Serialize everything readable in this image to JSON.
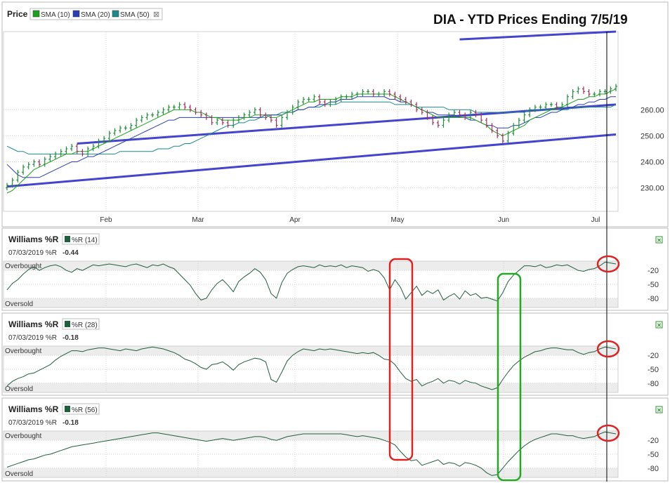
{
  "chart_data": [
    {
      "type": "line",
      "title": "DIA - YTD Prices Ending 7/5/19",
      "price_label": "Price",
      "legend": [
        {
          "name": "SMA (10)",
          "color": "#1aa31a"
        },
        {
          "name": "SMA (20)",
          "color": "#2a3fb4"
        },
        {
          "name": "SMA (50)",
          "color": "#1a8a8a"
        }
      ],
      "legend_close": "⊠",
      "x_month_labels": [
        "Feb",
        "Mar",
        "Apr",
        "May",
        "Jun",
        "Jul"
      ],
      "y_ticks": [
        "260.00",
        "250.00",
        "240.00",
        "230.00"
      ],
      "ylim": [
        221,
        290
      ],
      "price_colors": {
        "up": "#1f8f3a",
        "down": "#a0305a",
        "trend": "#4444cc"
      },
      "price_close": [
        231,
        233,
        236,
        238,
        239,
        240,
        239,
        241,
        242,
        243,
        244,
        245,
        246,
        244,
        243,
        245,
        246,
        248,
        249,
        251,
        252,
        253,
        253,
        254,
        256,
        257,
        258,
        258,
        259,
        260,
        261,
        261,
        262,
        261,
        260,
        259,
        258,
        257,
        255,
        256,
        255,
        254,
        256,
        257,
        258,
        259,
        260,
        258,
        257,
        256,
        254,
        257,
        259,
        261,
        263,
        264,
        264,
        265,
        263,
        262,
        263,
        264,
        265,
        265,
        266,
        266,
        267,
        267,
        266,
        266,
        267,
        266,
        265,
        264,
        263,
        262,
        260,
        259,
        257,
        255,
        254,
        256,
        258,
        259,
        258,
        257,
        259,
        258,
        256,
        254,
        252,
        250,
        248,
        251,
        254,
        256,
        258,
        260,
        261,
        261,
        262,
        262,
        261,
        262,
        265,
        267,
        268,
        267,
        266,
        266,
        267,
        267,
        268,
        269
      ],
      "sma10": [
        228,
        229,
        231,
        233,
        235,
        237,
        238,
        239,
        240,
        241,
        242,
        243,
        243,
        244,
        244,
        244,
        245,
        246,
        247,
        248,
        249,
        250,
        251,
        252,
        253,
        254,
        255,
        256,
        257,
        258,
        259,
        260,
        260,
        260,
        260,
        259,
        259,
        258,
        257,
        257,
        256,
        256,
        256,
        256,
        257,
        257,
        258,
        258,
        258,
        257,
        257,
        258,
        259,
        260,
        261,
        262,
        263,
        263,
        264,
        264,
        264,
        264,
        265,
        265,
        265,
        266,
        266,
        266,
        266,
        266,
        266,
        266,
        265,
        264,
        263,
        262,
        261,
        260,
        259,
        258,
        257,
        257,
        257,
        257,
        257,
        257,
        257,
        256,
        255,
        254,
        252,
        251,
        250,
        251,
        252,
        253,
        254,
        256,
        257,
        258,
        259,
        260,
        261,
        261,
        262,
        263,
        264,
        264,
        265,
        265,
        266,
        266,
        267,
        268
      ],
      "sma20": [
        239,
        237,
        235,
        234,
        234,
        234,
        234,
        235,
        236,
        237,
        238,
        239,
        240,
        240,
        241,
        242,
        242,
        243,
        244,
        245,
        246,
        247,
        248,
        249,
        250,
        251,
        252,
        253,
        254,
        255,
        256,
        256,
        257,
        257,
        257,
        257,
        257,
        257,
        257,
        257,
        257,
        257,
        257,
        257,
        257,
        257,
        257,
        257,
        258,
        258,
        258,
        258,
        259,
        259,
        260,
        260,
        261,
        261,
        262,
        262,
        263,
        263,
        264,
        264,
        264,
        265,
        265,
        265,
        265,
        265,
        265,
        264,
        264,
        263,
        263,
        262,
        261,
        260,
        259,
        259,
        258,
        258,
        258,
        258,
        257,
        257,
        256,
        256,
        255,
        254,
        254,
        253,
        253,
        253,
        254,
        254,
        255,
        256,
        257,
        257,
        258,
        259,
        259,
        260,
        261,
        261,
        262,
        262,
        263,
        263,
        264,
        264,
        265,
        265
      ],
      "sma50": [
        246,
        245,
        244,
        244,
        243,
        243,
        243,
        243,
        243,
        243,
        243,
        243,
        243,
        243,
        243,
        243,
        243,
        243,
        243,
        243,
        243,
        244,
        244,
        244,
        244,
        244,
        244,
        244,
        245,
        245,
        245,
        246,
        246,
        247,
        247,
        248,
        249,
        250,
        251,
        252,
        253,
        254,
        254,
        255,
        255,
        256,
        256,
        257,
        257,
        258,
        258,
        259,
        259,
        259,
        260,
        260,
        261,
        261,
        261,
        262,
        262,
        262,
        263,
        263,
        263,
        263,
        263,
        263,
        263,
        263,
        263,
        263,
        262,
        262,
        262,
        262,
        261,
        261,
        261,
        261,
        261,
        261,
        260,
        260,
        260,
        260,
        260,
        259,
        259,
        259,
        259,
        259,
        259,
        259,
        259,
        259,
        259,
        260,
        260,
        260,
        260,
        260,
        260,
        260,
        260,
        261,
        261,
        261,
        261,
        261,
        261,
        261,
        261,
        262
      ],
      "trendlines": [
        {
          "from": [
            0,
            230.5
          ],
          "to": [
            113,
            250.5
          ]
        },
        {
          "from": [
            13,
            247
          ],
          "to": [
            113,
            262
          ]
        },
        {
          "from": [
            84,
            287
          ],
          "to": [
            113,
            290
          ]
        }
      ]
    },
    {
      "type": "line",
      "title": "Williams %R",
      "legend": [
        {
          "name": "%R (14)",
          "color": "#1f5f3a"
        }
      ],
      "date_label": "07/03/2019 %R",
      "last_value": "-0.44",
      "zone_labels": [
        "Overbought",
        "Oversold"
      ],
      "y_ticks": [
        "-20",
        "-50",
        "-80"
      ],
      "ylim": [
        -100,
        0
      ],
      "values": [
        -62,
        -48,
        -40,
        -28,
        -18,
        -12,
        -20,
        -14,
        -10,
        -8,
        -12,
        -20,
        -24,
        -16,
        -20,
        -14,
        -8,
        -10,
        -8,
        -6,
        -8,
        -10,
        -12,
        -8,
        -6,
        -10,
        -14,
        -8,
        -10,
        -6,
        -12,
        -16,
        -28,
        -40,
        -52,
        -70,
        -84,
        -80,
        -62,
        -48,
        -40,
        -52,
        -66,
        -44,
        -34,
        -26,
        -16,
        -24,
        -40,
        -70,
        -80,
        -46,
        -26,
        -18,
        -12,
        -10,
        -12,
        -14,
        -8,
        -12,
        -10,
        -12,
        -8,
        -14,
        -10,
        -12,
        -14,
        -22,
        -18,
        -22,
        -36,
        -62,
        -40,
        -56,
        -82,
        -68,
        -54,
        -74,
        -64,
        -70,
        -62,
        -84,
        -76,
        -70,
        -82,
        -64,
        -74,
        -70,
        -80,
        -78,
        -82,
        -86,
        -68,
        -44,
        -30,
        -20,
        -10,
        -10,
        -12,
        -8,
        -14,
        -12,
        -8,
        -10,
        -8,
        -14,
        -20,
        -22,
        -18,
        -16,
        -10,
        -2,
        -4,
        -6
      ]
    },
    {
      "type": "line",
      "title": "Williams %R",
      "legend": [
        {
          "name": "%R (28)",
          "color": "#1f5f3a"
        }
      ],
      "date_label": "07/03/2019 %R",
      "last_value": "-0.18",
      "zone_labels": [
        "Overbought",
        "Oversold"
      ],
      "y_ticks": [
        "-20",
        "-50",
        "-80"
      ],
      "ylim": [
        -100,
        0
      ],
      "values": [
        -86,
        -76,
        -70,
        -66,
        -60,
        -58,
        -52,
        -46,
        -40,
        -30,
        -22,
        -16,
        -10,
        -10,
        -12,
        -8,
        -6,
        -4,
        -4,
        -6,
        -8,
        -10,
        -6,
        -8,
        -10,
        -6,
        -4,
        -2,
        -4,
        -6,
        -10,
        -14,
        -20,
        -28,
        -32,
        -38,
        -46,
        -50,
        -40,
        -38,
        -34,
        -42,
        -52,
        -40,
        -34,
        -30,
        -26,
        -28,
        -34,
        -72,
        -78,
        -56,
        -32,
        -20,
        -12,
        -6,
        -8,
        -10,
        -6,
        -8,
        -6,
        -8,
        -10,
        -12,
        -14,
        -16,
        -14,
        -16,
        -14,
        -20,
        -28,
        -30,
        -40,
        -56,
        -70,
        -76,
        -72,
        -86,
        -80,
        -76,
        -70,
        -80,
        -74,
        -76,
        -82,
        -74,
        -78,
        -80,
        -86,
        -90,
        -94,
        -90,
        -72,
        -56,
        -42,
        -32,
        -24,
        -18,
        -12,
        -10,
        -6,
        -4,
        -4,
        -6,
        -8,
        -8,
        -14,
        -18,
        -14,
        -12,
        -6,
        -2,
        -4,
        -6
      ]
    },
    {
      "type": "line",
      "title": "Williams %R",
      "legend": [
        {
          "name": "%R (56)",
          "color": "#1f5f3a"
        }
      ],
      "date_label": "07/03/2019 %R",
      "last_value": "-0.18",
      "zone_labels": [
        "Overbought",
        "Oversold"
      ],
      "y_ticks": [
        "-20",
        "-50",
        "-80"
      ],
      "ylim": [
        -100,
        0
      ],
      "values": [
        -78,
        -74,
        -70,
        -66,
        -62,
        -60,
        -56,
        -52,
        -50,
        -46,
        -42,
        -38,
        -34,
        -32,
        -30,
        -28,
        -26,
        -24,
        -22,
        -20,
        -18,
        -16,
        -14,
        -12,
        -10,
        -8,
        -6,
        -4,
        -4,
        -6,
        -8,
        -10,
        -12,
        -14,
        -16,
        -18,
        -20,
        -22,
        -20,
        -18,
        -16,
        -18,
        -20,
        -18,
        -16,
        -14,
        -12,
        -12,
        -14,
        -18,
        -20,
        -16,
        -12,
        -10,
        -8,
        -6,
        -6,
        -6,
        -6,
        -6,
        -6,
        -6,
        -6,
        -8,
        -10,
        -12,
        -10,
        -12,
        -14,
        -16,
        -20,
        -24,
        -30,
        -44,
        -56,
        -64,
        -62,
        -74,
        -70,
        -66,
        -62,
        -72,
        -68,
        -70,
        -76,
        -68,
        -70,
        -74,
        -80,
        -90,
        -96,
        -94,
        -80,
        -66,
        -54,
        -42,
        -32,
        -24,
        -18,
        -14,
        -10,
        -6,
        -6,
        -8,
        -10,
        -10,
        -14,
        -16,
        -14,
        -12,
        -6,
        -2,
        -4,
        -6
      ]
    }
  ],
  "annotations": {
    "colors": {
      "red": "#dd2222",
      "green": "#22aa22",
      "cursor": "#000000"
    },
    "close_icon": "✕"
  }
}
